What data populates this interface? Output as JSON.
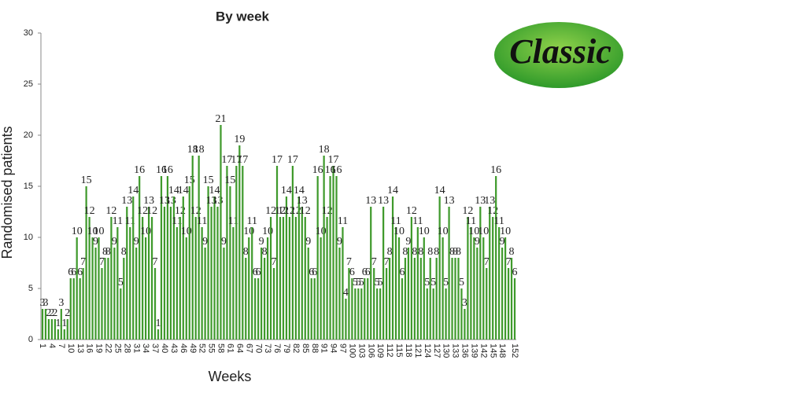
{
  "chart_data": {
    "type": "bar",
    "title": "By week",
    "x_label": "Weeks",
    "y_label": "Randomised patients",
    "logo": "Classic",
    "categories": [
      "1",
      null,
      null,
      "4",
      null,
      null,
      "7",
      null,
      null,
      "10",
      null,
      null,
      "13",
      null,
      null,
      "16",
      null,
      null,
      "19",
      null,
      null,
      "22",
      null,
      null,
      "25",
      null,
      null,
      "28",
      null,
      null,
      "31",
      null,
      null,
      "34",
      null,
      null,
      "37",
      null,
      null,
      "40",
      null,
      null,
      "43",
      null,
      null,
      "46",
      null,
      null,
      "49",
      null,
      null,
      "52",
      null,
      null,
      "55",
      null,
      null,
      "58",
      null,
      null,
      "61",
      null,
      null,
      "64",
      null,
      null,
      "67",
      null,
      null,
      "70",
      null,
      null,
      "73",
      null,
      null,
      "76",
      null,
      null,
      "79",
      null,
      null,
      "82",
      null,
      null,
      "85",
      null,
      null,
      "88",
      null,
      null,
      "91",
      null,
      null,
      "94",
      null,
      null,
      "97",
      null,
      null,
      "100",
      null,
      null,
      "103",
      null,
      null,
      "106",
      null,
      null,
      "109",
      null,
      null,
      "112",
      null,
      null,
      "115",
      null,
      null,
      "118",
      null,
      null,
      "121",
      null,
      null,
      "124",
      null,
      null,
      "127",
      null,
      null,
      "130",
      null,
      null,
      "133",
      null,
      null,
      "136",
      null,
      null,
      "139",
      null,
      null,
      "142",
      null,
      null,
      "145",
      null,
      null,
      "148",
      null,
      null,
      null,
      "152"
    ],
    "values": [
      3,
      3,
      2,
      2,
      2,
      1,
      3,
      1,
      2,
      6,
      6,
      10,
      6,
      7,
      15,
      12,
      10,
      9,
      10,
      7,
      8,
      8,
      12,
      9,
      11,
      5,
      8,
      13,
      11,
      14,
      9,
      16,
      12,
      10,
      13,
      12,
      7,
      1,
      16,
      13,
      16,
      13,
      14,
      11,
      12,
      14,
      10,
      15,
      18,
      12,
      18,
      11,
      9,
      15,
      13,
      14,
      13,
      21,
      9,
      17,
      15,
      11,
      17,
      19,
      17,
      8,
      10,
      11,
      6,
      6,
      9,
      8,
      10,
      12,
      7,
      17,
      12,
      12,
      14,
      12,
      17,
      12,
      14,
      13,
      12,
      9,
      6,
      6,
      16,
      10,
      18,
      12,
      16,
      17,
      16,
      9,
      11,
      4,
      7,
      6,
      5,
      5,
      5,
      6,
      6,
      13,
      7,
      5,
      5,
      13,
      7,
      8,
      14,
      11,
      10,
      6,
      8,
      9,
      12,
      8,
      11,
      8,
      10,
      5,
      8,
      5,
      8,
      14,
      10,
      5,
      13,
      8,
      8,
      8,
      5,
      3,
      12,
      11,
      10,
      9,
      13,
      10,
      7,
      13,
      12,
      16,
      11,
      9,
      10,
      7,
      8,
      6
    ],
    "color": "#3f9a2c",
    "ylim": [
      0,
      30
    ],
    "yticks": [
      0,
      5,
      10,
      15,
      20,
      25,
      30
    ],
    "grid": false
  }
}
